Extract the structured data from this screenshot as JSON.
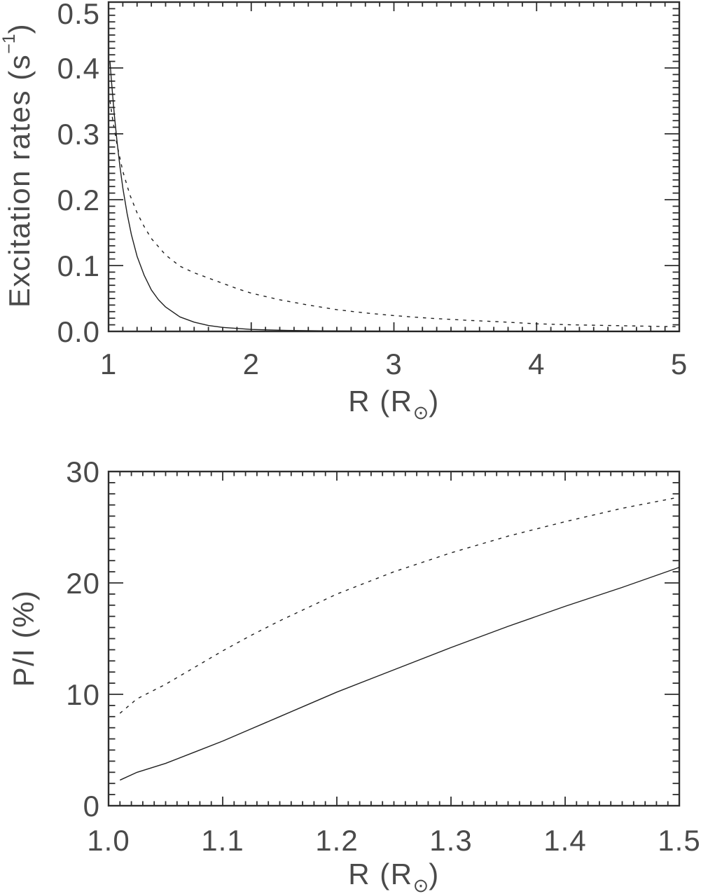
{
  "figure": {
    "background": "#ffffff",
    "axis_color": "#2e2e2e",
    "line_color": "#1f1f1f",
    "text_color": "#4a4a4a"
  },
  "chart_data": [
    {
      "id": "excitation-rates",
      "type": "line",
      "title": "",
      "xlabel": {
        "pre": "R (R",
        "sub": "⊙",
        "post": ")"
      },
      "ylabel": {
        "pre": "Excitation rates (s",
        "sup": "−1",
        "post": ")"
      },
      "xlim": [
        1,
        5
      ],
      "ylim": [
        0.0,
        0.5
      ],
      "grid": false,
      "legend": null,
      "x_major_ticks": [
        1,
        2,
        3,
        4,
        5
      ],
      "x_tick_labels": [
        "1",
        "2",
        "3",
        "4",
        "5"
      ],
      "x_minor_step": 0.1,
      "y_major_ticks": [
        0.0,
        0.1,
        0.2,
        0.3,
        0.4,
        0.5
      ],
      "y_tick_labels": [
        "0.0",
        "0.1",
        "0.2",
        "0.3",
        "0.4",
        "0.5"
      ],
      "y_minor_step": 0.01,
      "series": [
        {
          "name": "solid",
          "style": "solid",
          "x": [
            1.01,
            1.02,
            1.04,
            1.06,
            1.08,
            1.1,
            1.13,
            1.16,
            1.2,
            1.25,
            1.3,
            1.35,
            1.4,
            1.5,
            1.6,
            1.7,
            1.8,
            2.0,
            2.25,
            2.5,
            3.0,
            3.5,
            4.0,
            4.5,
            5.0
          ],
          "y": [
            0.41,
            0.381,
            0.33,
            0.287,
            0.25,
            0.218,
            0.179,
            0.147,
            0.114,
            0.085,
            0.063,
            0.048,
            0.037,
            0.022,
            0.014,
            0.009,
            0.006,
            0.003,
            0.0015,
            0.0008,
            0.0003,
            0.0001,
            0.0,
            0.0,
            0.0
          ]
        },
        {
          "name": "dotted",
          "style": "dotted",
          "x": [
            1.01,
            1.03,
            1.06,
            1.1,
            1.15,
            1.2,
            1.25,
            1.3,
            1.4,
            1.5,
            1.6,
            1.7,
            1.8,
            1.9,
            2.0,
            2.2,
            2.4,
            2.6,
            2.8,
            3.0,
            3.25,
            3.5,
            3.75,
            4.0,
            4.25,
            4.5,
            4.75,
            5.0
          ],
          "y": [
            0.35,
            0.32,
            0.283,
            0.243,
            0.207,
            0.18,
            0.159,
            0.141,
            0.116,
            0.099,
            0.089,
            0.081,
            0.073,
            0.065,
            0.058,
            0.048,
            0.04,
            0.033,
            0.028,
            0.024,
            0.02,
            0.017,
            0.0145,
            0.0115,
            0.01,
            0.009,
            0.008,
            0.007
          ]
        }
      ]
    },
    {
      "id": "polarization-ratio",
      "type": "line",
      "title": "",
      "xlabel": {
        "pre": "R (R",
        "sub": "⊙",
        "post": ")"
      },
      "ylabel": {
        "pre": "P/I (%)",
        "sup": "",
        "post": ""
      },
      "xlim": [
        1.0,
        1.5
      ],
      "ylim": [
        0,
        30
      ],
      "grid": false,
      "legend": null,
      "x_major_ticks": [
        1.0,
        1.1,
        1.2,
        1.3,
        1.4,
        1.5
      ],
      "x_tick_labels": [
        "1.0",
        "1.1",
        "1.2",
        "1.3",
        "1.4",
        "1.5"
      ],
      "x_minor_step": 0.01,
      "y_major_ticks": [
        0,
        10,
        20,
        30
      ],
      "y_tick_labels": [
        "0",
        "10",
        "20",
        "30"
      ],
      "y_minor_step": 1,
      "series": [
        {
          "name": "solid",
          "style": "solid",
          "x": [
            1.01,
            1.025,
            1.05,
            1.075,
            1.1,
            1.125,
            1.15,
            1.175,
            1.2,
            1.25,
            1.3,
            1.35,
            1.4,
            1.45,
            1.5
          ],
          "y": [
            2.3,
            3.0,
            3.8,
            4.8,
            5.8,
            6.9,
            8.0,
            9.1,
            10.2,
            12.2,
            14.2,
            16.1,
            17.9,
            19.6,
            21.4
          ]
        },
        {
          "name": "dotted",
          "style": "dotted",
          "x": [
            1.01,
            1.025,
            1.05,
            1.075,
            1.1,
            1.125,
            1.15,
            1.175,
            1.2,
            1.25,
            1.3,
            1.35,
            1.4,
            1.45,
            1.5
          ],
          "y": [
            8.3,
            9.6,
            10.9,
            12.4,
            13.9,
            15.3,
            16.6,
            17.8,
            19.0,
            21.0,
            22.7,
            24.2,
            25.5,
            26.7,
            27.7
          ]
        }
      ]
    }
  ]
}
